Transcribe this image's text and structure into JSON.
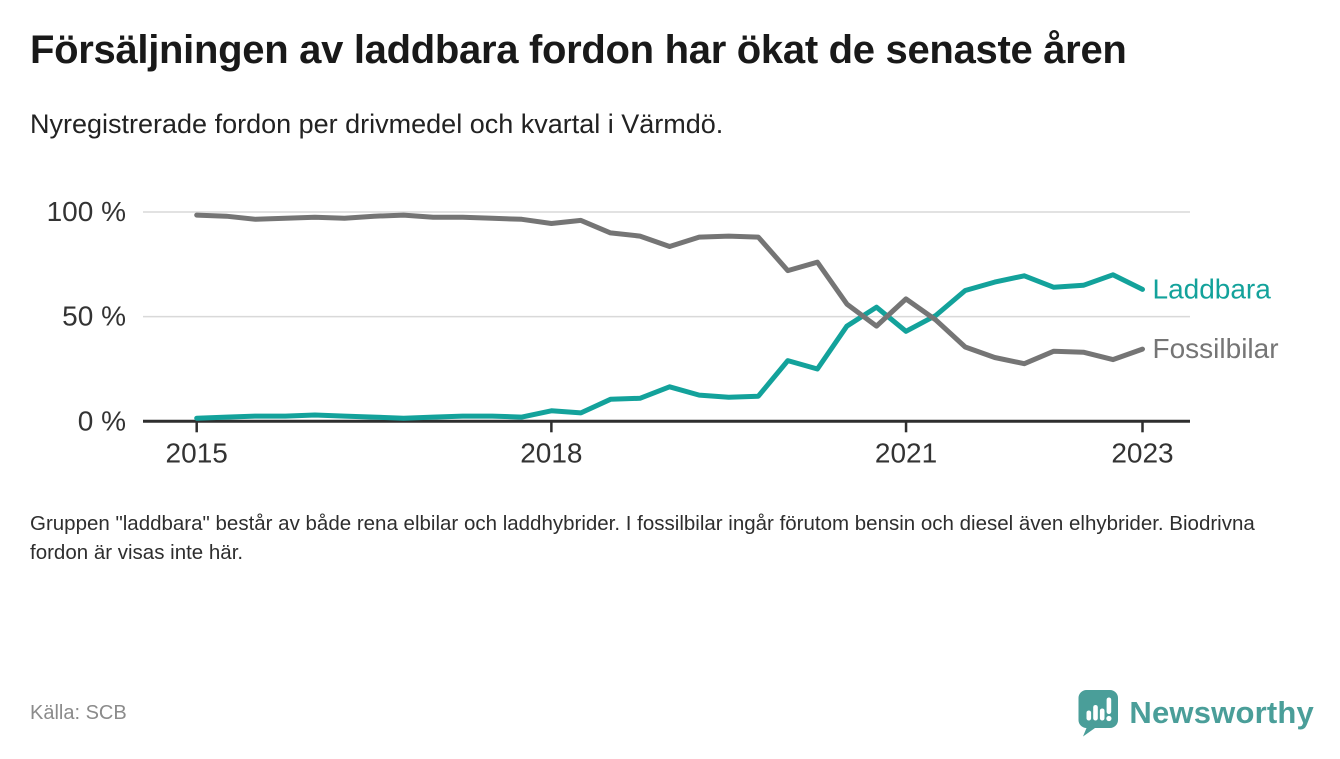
{
  "header": {
    "title": "Försäljningen av laddbara fordon har ökat de senaste åren",
    "subtitle": "Nyregistrerade fordon per drivmedel och kvartal i Värmdö."
  },
  "chart_data": {
    "type": "line",
    "title": "Försäljningen av laddbara fordon har ökat de senaste åren",
    "subtitle": "Nyregistrerade fordon per drivmedel och kvartal i Värmdö.",
    "unit": "%",
    "ylim": [
      0,
      100
    ],
    "grid": "horizontal",
    "legend_position": "end-of-line-labels",
    "x": [
      "2015 K1",
      "2015 K2",
      "2015 K3",
      "2015 K4",
      "2016 K1",
      "2016 K2",
      "2016 K3",
      "2016 K4",
      "2017 K1",
      "2017 K2",
      "2017 K3",
      "2017 K4",
      "2018 K1",
      "2018 K2",
      "2018 K3",
      "2018 K4",
      "2019 K1",
      "2019 K2",
      "2019 K3",
      "2019 K4",
      "2020 K1",
      "2020 K2",
      "2020 K3",
      "2020 K4",
      "2021 K1",
      "2021 K2",
      "2021 K3",
      "2021 K4",
      "2022 K1",
      "2022 K2",
      "2022 K3",
      "2022 K4",
      "2023 K1"
    ],
    "x_ticks": [
      {
        "label": "2015",
        "index": 0
      },
      {
        "label": "2018",
        "index": 12
      },
      {
        "label": "2021",
        "index": 24
      },
      {
        "label": "2023",
        "index": 32
      }
    ],
    "y_ticks": [
      {
        "label": "100 %",
        "value": 100
      },
      {
        "label": "50 %",
        "value": 50
      },
      {
        "label": "0 %",
        "value": 0
      }
    ],
    "series": [
      {
        "name": "Laddbara",
        "color": "#13a29b",
        "values": [
          1.5,
          2,
          2.5,
          2.5,
          3,
          2.5,
          2,
          1.5,
          2,
          2.5,
          2.5,
          2,
          5,
          4,
          10.5,
          11,
          16.5,
          12.5,
          11.5,
          12,
          29,
          25,
          45.5,
          54.5,
          43,
          50.5,
          62.5,
          66.5,
          69.5,
          64,
          65,
          70,
          63
        ]
      },
      {
        "name": "Fossilbilar",
        "color": "#757575",
        "values": [
          98.5,
          98,
          96.5,
          97,
          97.5,
          97,
          98,
          98.5,
          97.5,
          97.5,
          97,
          96.5,
          94.5,
          96,
          90,
          88.5,
          83.5,
          88,
          88.5,
          88,
          72,
          76,
          56,
          45.5,
          58.5,
          48.5,
          35.5,
          30.5,
          27.5,
          33.5,
          33,
          29.5,
          34.5
        ]
      }
    ]
  },
  "footer": {
    "note": "Gruppen \"laddbara\" består av både rena elbilar och laddhybrider. I fossilbilar ingår förutom bensin och diesel även elhybrider. Biodrivna fordon är visas inte här.",
    "source": "Källa: SCB"
  },
  "branding": {
    "logo_text": "Newsworthy",
    "logo_color": "#4a9e99",
    "logo_icon": "bar-chart-speech-bubble-icon"
  }
}
